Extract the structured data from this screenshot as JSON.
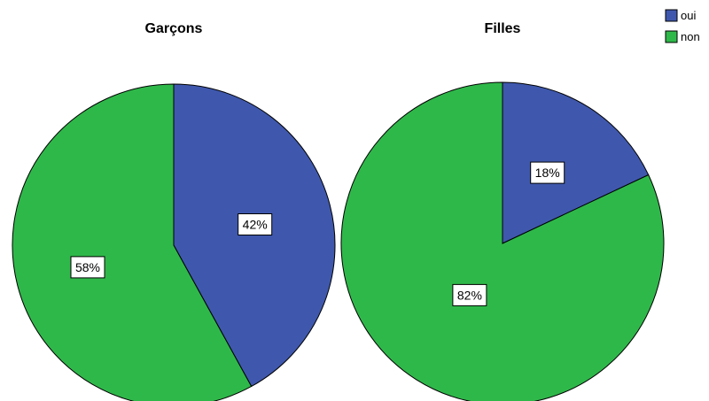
{
  "chart_data": [
    {
      "type": "pie",
      "title": "Garçons",
      "categories": [
        "oui",
        "non"
      ],
      "values": [
        42,
        58
      ],
      "labels": [
        "42%",
        "58%"
      ],
      "start_angle_deg": 0,
      "direction": "clockwise"
    },
    {
      "type": "pie",
      "title": "Filles",
      "categories": [
        "oui",
        "non"
      ],
      "values": [
        18,
        82
      ],
      "labels": [
        "18%",
        "82%"
      ],
      "start_angle_deg": 0,
      "direction": "clockwise"
    }
  ],
  "legend": {
    "placement": "top-right",
    "items": [
      {
        "label": "oui",
        "color": "#3f58ad"
      },
      {
        "label": "non",
        "color": "#2fb84a"
      }
    ]
  },
  "colors": {
    "oui": "#3f58ad",
    "non": "#2fb84a",
    "outline": "#000000"
  }
}
